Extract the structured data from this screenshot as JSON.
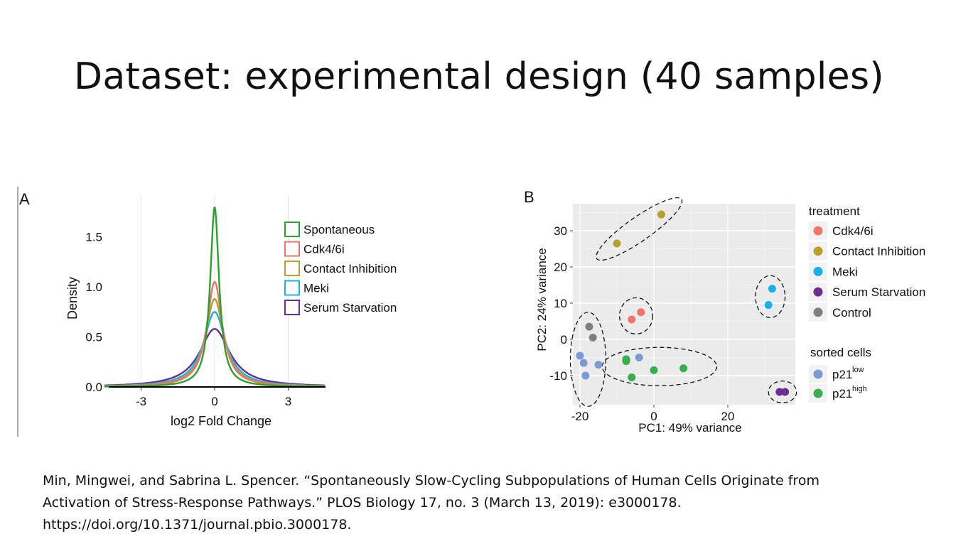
{
  "slide": {
    "title": "Dataset: experimental design (40 samples)",
    "citation": {
      "line1": "Min, Mingwei, and Sabrina L. Spencer. “Spontaneously Slow-Cycling Subpopulations of Human Cells Originate from",
      "line2": "Activation of Stress-Response Pathways.” PLOS Biology 17, no. 3 (March 13, 2019): e3000178.",
      "line3": "https://doi.org/10.1371/journal.pbio.3000178."
    }
  },
  "chart_data": [
    {
      "panel_label": "A",
      "type": "line",
      "xlabel": "log2 Fold Change",
      "ylabel": "Density",
      "xlim": [
        -4.5,
        4.5
      ],
      "ylim": [
        0,
        1.85
      ],
      "x_ticks": [
        -3,
        0,
        3
      ],
      "x_tick_labels": [
        "-3",
        "0",
        "3"
      ],
      "y_ticks": [
        0,
        0.5,
        1.0,
        1.5
      ],
      "y_tick_labels": [
        "0.0",
        "0.5",
        "1.0",
        "1.5"
      ],
      "legend_position": "top-right",
      "series": [
        {
          "name": "Spontaneous",
          "color": "#2ca02c",
          "peak_density": 1.8,
          "sd": 0.22
        },
        {
          "name": "Cdk4/6i",
          "color": "#e8746c",
          "peak_density": 1.05,
          "sd": 0.38
        },
        {
          "name": "Contact Inhibition",
          "color": "#b8a030",
          "peak_density": 0.88,
          "sd": 0.45
        },
        {
          "name": "Meki",
          "color": "#1cb0e8",
          "peak_density": 0.75,
          "sd": 0.55
        },
        {
          "name": "Serum Starvation",
          "color": "#6a2e8c",
          "peak_density": 0.58,
          "sd": 0.75
        }
      ]
    },
    {
      "panel_label": "B",
      "type": "scatter",
      "xlabel": "PC1: 49% variance",
      "ylabel": "PC2: 24% variance",
      "xlim": [
        -23,
        39
      ],
      "ylim": [
        -17,
        37
      ],
      "x_ticks": [
        -20,
        0,
        20
      ],
      "x_tick_labels": [
        "-20",
        "0",
        "20"
      ],
      "y_ticks": [
        -10,
        0,
        10,
        20,
        30
      ],
      "y_tick_labels": [
        "-10",
        "0",
        "10",
        "20",
        "30"
      ],
      "grid": true,
      "legend_treatment_title": "treatment",
      "legend_sorted_title": "sorted cells",
      "legend_treatment": [
        {
          "label": "Cdk4/6i",
          "color": "#f0766c"
        },
        {
          "label": "Contact Inhibition",
          "color": "#b8a02c"
        },
        {
          "label": "Meki",
          "color": "#18b0ec"
        },
        {
          "label": "Serum Starvation",
          "color": "#6a2e94"
        },
        {
          "label": "Control",
          "color": "#7f7f7f"
        }
      ],
      "legend_sorted": [
        {
          "label": "p21",
          "sup": "low",
          "color": "#7b9ad4"
        },
        {
          "label": "p21",
          "sup": "high",
          "color": "#36b04c"
        }
      ],
      "points": [
        {
          "x": 2,
          "y": 34.5,
          "group": "Contact Inhibition",
          "color": "#b8a02c"
        },
        {
          "x": -10,
          "y": 26.5,
          "group": "Contact Inhibition",
          "color": "#b8a02c"
        },
        {
          "x": -3.5,
          "y": 7.5,
          "group": "Cdk4/6i",
          "color": "#f0766c"
        },
        {
          "x": -6,
          "y": 5.5,
          "group": "Cdk4/6i",
          "color": "#f0766c"
        },
        {
          "x": 32,
          "y": 14,
          "group": "Meki",
          "color": "#18b0ec"
        },
        {
          "x": 31,
          "y": 9.5,
          "group": "Meki",
          "color": "#18b0ec"
        },
        {
          "x": 34,
          "y": -14.5,
          "group": "Serum Starvation",
          "color": "#6a2e94"
        },
        {
          "x": 35.5,
          "y": -14.5,
          "group": "Serum Starvation",
          "color": "#6a2e94"
        },
        {
          "x": -17.5,
          "y": 3.5,
          "group": "Control",
          "color": "#7f7f7f"
        },
        {
          "x": -16.5,
          "y": 0.5,
          "group": "Control",
          "color": "#7f7f7f"
        },
        {
          "x": -20,
          "y": -4.5,
          "group": "p21 low",
          "color": "#7b9ad4"
        },
        {
          "x": -19,
          "y": -6.5,
          "group": "p21 low",
          "color": "#7b9ad4"
        },
        {
          "x": -15,
          "y": -7,
          "group": "p21 low",
          "color": "#7b9ad4"
        },
        {
          "x": -18.5,
          "y": -10,
          "group": "p21 low",
          "color": "#7b9ad4"
        },
        {
          "x": -4,
          "y": -5,
          "group": "p21 low",
          "color": "#7b9ad4"
        },
        {
          "x": -7.5,
          "y": -5.5,
          "group": "p21 high",
          "color": "#36b04c"
        },
        {
          "x": -7.5,
          "y": -6,
          "group": "p21 high",
          "color": "#36b04c"
        },
        {
          "x": -6,
          "y": -10.5,
          "group": "p21 high",
          "color": "#36b04c"
        },
        {
          "x": 0,
          "y": -8.5,
          "group": "p21 high",
          "color": "#36b04c"
        },
        {
          "x": 8,
          "y": -8,
          "group": "p21 high",
          "color": "#36b04c"
        }
      ]
    }
  ]
}
